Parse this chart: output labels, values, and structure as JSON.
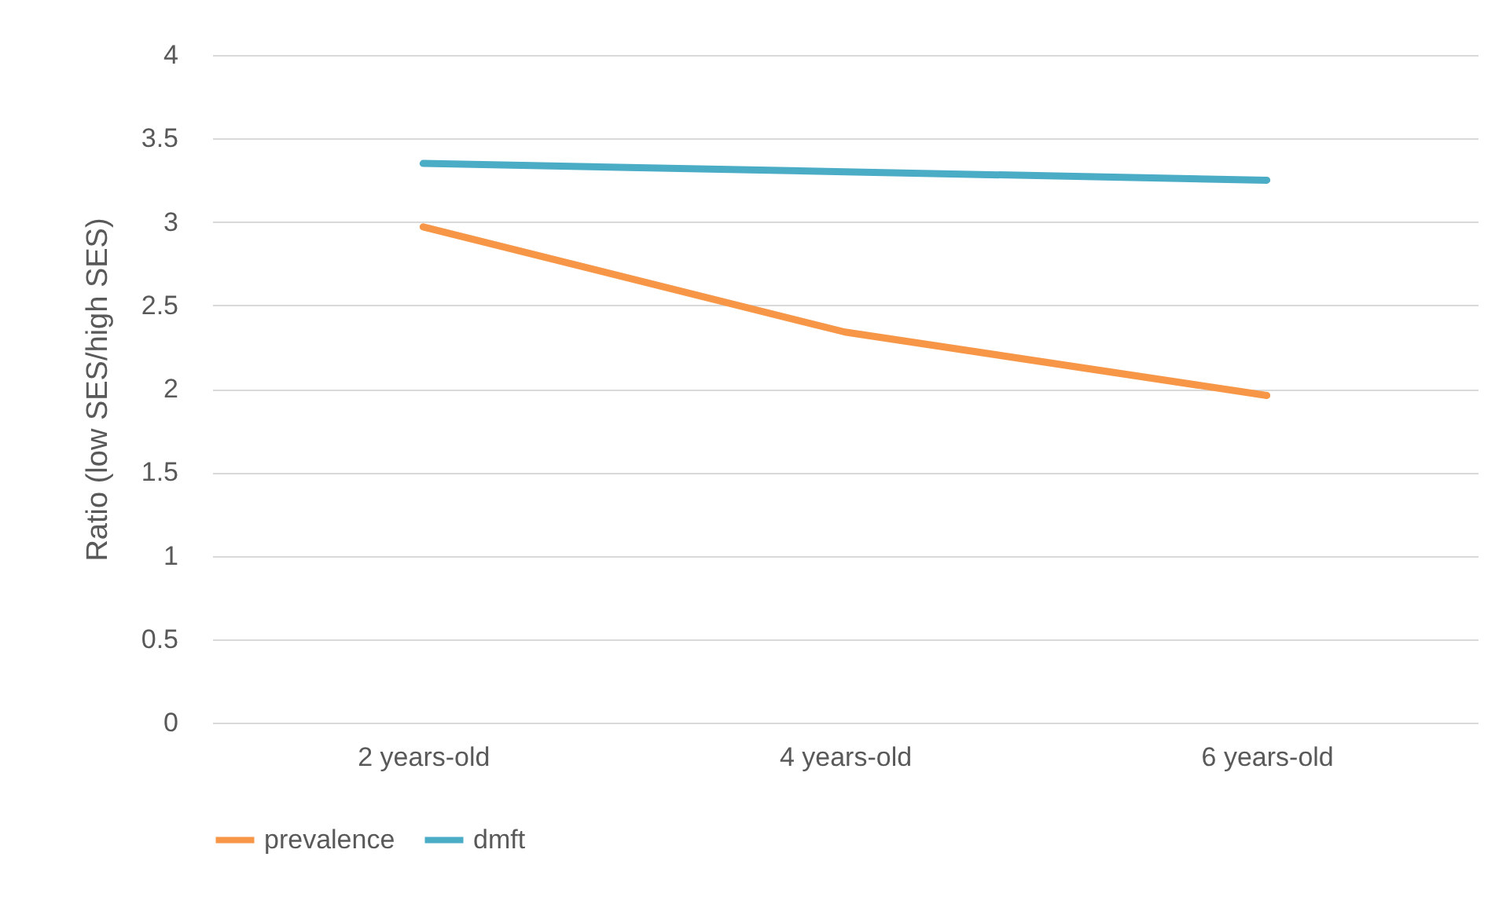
{
  "chart_data": {
    "type": "line",
    "ylabel": "Ratio (low SES/high SES)",
    "categories": [
      "2 years-old",
      "4 years-old",
      "6 years-old"
    ],
    "series": [
      {
        "name": "prevalence",
        "color": "#f79646",
        "values": [
          2.97,
          2.34,
          1.96
        ]
      },
      {
        "name": "dmft",
        "color": "#4bacc6",
        "values": [
          3.35,
          3.3,
          3.25
        ]
      }
    ],
    "ylim": [
      0,
      4
    ],
    "yticks": [
      0,
      0.5,
      1,
      1.5,
      2,
      2.5,
      3,
      3.5,
      4
    ],
    "grid": "y",
    "legend": "bottom",
    "marker": "none",
    "line_style": "solid"
  }
}
